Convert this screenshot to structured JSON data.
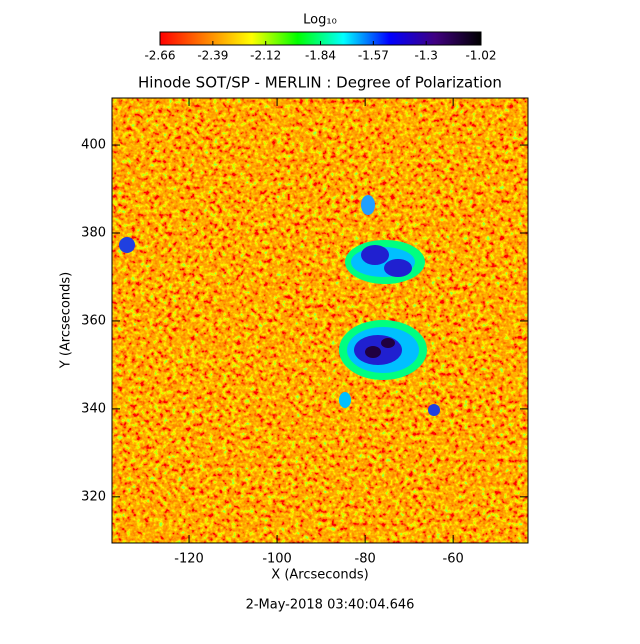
{
  "chart_data": {
    "type": "heatmap",
    "title": "Hinode SOT/SP - MERLIN : Degree of Polarization",
    "xlabel": "X (Arcseconds)",
    "ylabel": "Y (Arcseconds)",
    "xlim": [
      -137.5,
      -43
    ],
    "xticks": [
      -120,
      -100,
      -80,
      -60
    ],
    "ylim": [
      309.5,
      410.7
    ],
    "yticks": [
      320,
      340,
      360,
      380,
      400
    ],
    "colorbar": {
      "label": "Log₁₀",
      "clim": [
        -2.66,
        -1.02
      ],
      "ticks": [
        -2.66,
        -2.39,
        -2.12,
        -1.84,
        -1.57,
        -1.3,
        -1.02
      ],
      "colormap": [
        "#ff0000",
        "#ff8000",
        "#ffff00",
        "#00ff00",
        "#00ffff",
        "#0000ff",
        "#400080",
        "#000000"
      ]
    },
    "footer": "2-May-2018 03:40:04.646"
  }
}
